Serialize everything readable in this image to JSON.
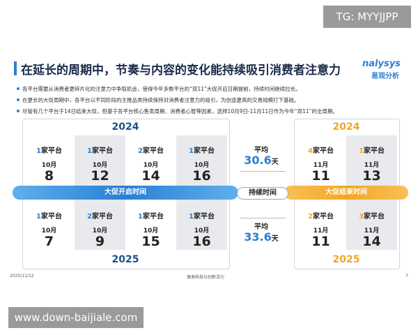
{
  "watermark_top": "TG: MYYJJPP",
  "header": {
    "title": "在延长的周期中，节奏与内容的变化能持续吸引消费者注意力",
    "logo": "nalysys",
    "logo_sub": "易观分析"
  },
  "bullets": [
    "各平台需要从消费者更碎片化的注意力中争取机会，使得今年多数平台的“双11”大促开启日期提前，持续时间继续拉长。",
    "在更长的大促周期中，各平台以不同阶段的主推品类持续保持对消费者注意力的吸引，为创造更高的交易规模打下基础。",
    "尽管有几个平台于14日结束大促，但基于各平台核心售卖周期、消费者心智等因素，选择10月9日-11月11日作为今年“双11”的全周期。"
  ],
  "start_panel": {
    "year_top": "2024",
    "year_bottom": "2025",
    "banner": "大促开启时间",
    "top": [
      {
        "count": 1,
        "unit": "家平台",
        "month": "10月",
        "day": 8
      },
      {
        "count": 1,
        "unit": "家平台",
        "month": "10月",
        "day": 12
      },
      {
        "count": 2,
        "unit": "家平台",
        "month": "10月",
        "day": 14
      },
      {
        "count": 1,
        "unit": "家平台",
        "month": "10月",
        "day": 16
      }
    ],
    "bottom": [
      {
        "count": 1,
        "unit": "家平台",
        "month": "10月",
        "day": 7
      },
      {
        "count": 2,
        "unit": "家平台",
        "month": "10月",
        "day": 9
      },
      {
        "count": 1,
        "unit": "家平台",
        "month": "10月",
        "day": 15
      },
      {
        "count": 1,
        "unit": "家平台",
        "month": "10月",
        "day": 16
      }
    ]
  },
  "duration": {
    "label": "持续时间",
    "top": {
      "label": "平均",
      "value": 30.6,
      "unit": "天"
    },
    "bottom": {
      "label": "平均",
      "value": 33.6,
      "unit": "天"
    }
  },
  "end_panel": {
    "year_top": "2024",
    "year_bottom": "2025",
    "banner": "大促结束时间",
    "top": [
      {
        "count": 4,
        "unit": "家平台",
        "month": "11月",
        "day": 11
      },
      {
        "count": 1,
        "unit": "家平台",
        "month": "11月",
        "day": 13
      }
    ],
    "bottom": [
      {
        "count": 2,
        "unit": "家平台",
        "month": "11月",
        "day": 11
      },
      {
        "count": 3,
        "unit": "家平台",
        "month": "11月",
        "day": 14
      }
    ]
  },
  "footer": {
    "date": "2025/11/12",
    "slogan": "激发科技与创新活力",
    "page": "7"
  },
  "watermark_bottom": "www.down-baijiale.com"
}
